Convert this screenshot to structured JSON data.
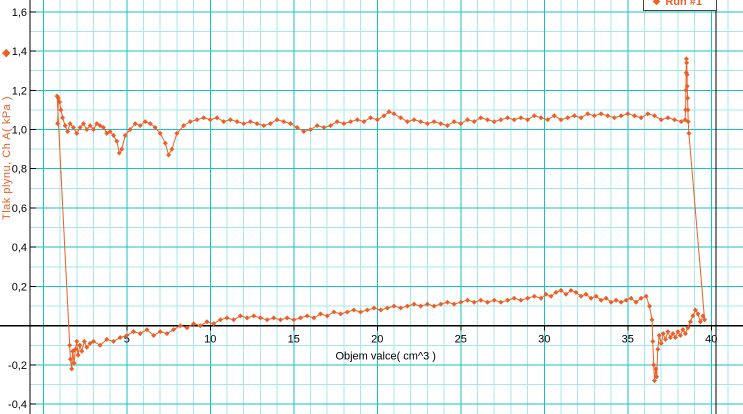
{
  "chart_data": {
    "type": "scatter",
    "title": "",
    "xlabel": "Objem valce( cm^3 )",
    "ylabel": "Tlak plynu, Ch A( kPa )",
    "legend": {
      "label": "Run #1",
      "marker_glyph": "◆",
      "position": "top-right"
    },
    "grid": true,
    "xlim": [
      -0.8,
      41.9
    ],
    "ylim": [
      -0.45,
      1.66
    ],
    "x_minor_step": 1,
    "y_minor_step": 0.1,
    "x_major_ticks": [
      {
        "v": 5,
        "label": "5"
      },
      {
        "v": 10,
        "label": "10"
      },
      {
        "v": 15,
        "label": "15"
      },
      {
        "v": 20,
        "label": "20"
      },
      {
        "v": 25,
        "label": "25"
      },
      {
        "v": 30,
        "label": "30"
      },
      {
        "v": 35,
        "label": "35"
      },
      {
        "v": 40,
        "label": "40"
      }
    ],
    "y_major_ticks": [
      {
        "v": 1.6,
        "label": "1,6"
      },
      {
        "v": 1.4,
        "label": "1,4"
      },
      {
        "v": 1.2,
        "label": "1,2"
      },
      {
        "v": 1.0,
        "label": "1,0"
      },
      {
        "v": 0.8,
        "label": "0,8"
      },
      {
        "v": 0.6,
        "label": "0,6"
      },
      {
        "v": 0.4,
        "label": "0,4"
      },
      {
        "v": 0.2,
        "label": "0,2"
      },
      {
        "v": -0.2,
        "label": "-0,2"
      },
      {
        "v": -0.4,
        "label": "-0,4"
      }
    ],
    "colors": {
      "series": "#ec5f28",
      "grid_major": "#17c3c3",
      "grid_minor": "#a5e8e8",
      "axis": "#000000",
      "background": "#ffffff"
    },
    "series": [
      {
        "name": "Run #1",
        "marker": "diamond",
        "points": [
          [
            0.82,
            1.17
          ],
          [
            1.58,
            -0.1
          ],
          [
            1.62,
            -0.17
          ],
          [
            1.7,
            -0.22
          ],
          [
            1.76,
            -0.13
          ],
          [
            1.84,
            -0.19
          ],
          [
            1.92,
            -0.12
          ],
          [
            2.0,
            -0.08
          ],
          [
            2.08,
            -0.15
          ],
          [
            2.18,
            -0.1
          ],
          [
            2.3,
            -0.13
          ],
          [
            2.45,
            -0.08
          ],
          [
            2.6,
            -0.11
          ],
          [
            2.8,
            -0.09
          ],
          [
            3.0,
            -0.08
          ],
          [
            3.4,
            -0.1
          ],
          [
            3.8,
            -0.07
          ],
          [
            4.2,
            -0.08
          ],
          [
            4.6,
            -0.06
          ],
          [
            5.0,
            -0.05
          ],
          [
            5.4,
            -0.03
          ],
          [
            5.8,
            -0.04
          ],
          [
            6.2,
            -0.02
          ],
          [
            6.6,
            -0.05
          ],
          [
            7.0,
            -0.03
          ],
          [
            7.4,
            -0.04
          ],
          [
            7.8,
            -0.02
          ],
          [
            8.2,
            0.0
          ],
          [
            8.6,
            -0.01
          ],
          [
            9.0,
            0.01
          ],
          [
            9.4,
            0.0
          ],
          [
            9.8,
            0.02
          ],
          [
            10.2,
            0.01
          ],
          [
            10.6,
            0.03
          ],
          [
            11.0,
            0.04
          ],
          [
            11.4,
            0.03
          ],
          [
            11.8,
            0.05
          ],
          [
            12.2,
            0.04
          ],
          [
            12.6,
            0.05
          ],
          [
            13.0,
            0.04
          ],
          [
            13.4,
            0.03
          ],
          [
            13.8,
            0.04
          ],
          [
            14.2,
            0.03
          ],
          [
            14.6,
            0.04
          ],
          [
            15.0,
            0.03
          ],
          [
            15.4,
            0.04
          ],
          [
            15.8,
            0.05
          ],
          [
            16.2,
            0.04
          ],
          [
            16.6,
            0.06
          ],
          [
            17.0,
            0.05
          ],
          [
            17.4,
            0.07
          ],
          [
            17.8,
            0.06
          ],
          [
            18.2,
            0.07
          ],
          [
            18.6,
            0.08
          ],
          [
            19.0,
            0.07
          ],
          [
            19.4,
            0.08
          ],
          [
            19.8,
            0.09
          ],
          [
            20.2,
            0.08
          ],
          [
            20.6,
            0.09
          ],
          [
            21.0,
            0.1
          ],
          [
            21.4,
            0.09
          ],
          [
            21.8,
            0.1
          ],
          [
            22.2,
            0.11
          ],
          [
            22.6,
            0.1
          ],
          [
            23.0,
            0.11
          ],
          [
            23.4,
            0.1
          ],
          [
            23.8,
            0.11
          ],
          [
            24.2,
            0.12
          ],
          [
            24.6,
            0.11
          ],
          [
            25.0,
            0.12
          ],
          [
            25.4,
            0.13
          ],
          [
            25.8,
            0.12
          ],
          [
            26.2,
            0.13
          ],
          [
            26.6,
            0.12
          ],
          [
            27.0,
            0.13
          ],
          [
            27.4,
            0.12
          ],
          [
            27.8,
            0.13
          ],
          [
            28.2,
            0.14
          ],
          [
            28.6,
            0.13
          ],
          [
            29.0,
            0.14
          ],
          [
            29.4,
            0.15
          ],
          [
            29.8,
            0.14
          ],
          [
            30.1,
            0.16
          ],
          [
            30.4,
            0.15
          ],
          [
            30.7,
            0.17
          ],
          [
            31.0,
            0.18
          ],
          [
            31.3,
            0.16
          ],
          [
            31.6,
            0.18
          ],
          [
            31.9,
            0.17
          ],
          [
            32.2,
            0.15
          ],
          [
            32.5,
            0.16
          ],
          [
            32.8,
            0.14
          ],
          [
            33.1,
            0.15
          ],
          [
            33.4,
            0.13
          ],
          [
            33.7,
            0.14
          ],
          [
            34.0,
            0.12
          ],
          [
            34.3,
            0.13
          ],
          [
            34.6,
            0.12
          ],
          [
            34.9,
            0.13
          ],
          [
            35.2,
            0.14
          ],
          [
            35.5,
            0.12
          ],
          [
            35.8,
            0.14
          ],
          [
            36.1,
            0.15
          ],
          [
            36.3,
            0.1
          ],
          [
            36.45,
            0.03
          ],
          [
            36.5,
            -0.08
          ],
          [
            36.55,
            -0.2
          ],
          [
            36.6,
            -0.28
          ],
          [
            36.68,
            -0.22
          ],
          [
            36.73,
            -0.26
          ],
          [
            36.8,
            -0.12
          ],
          [
            36.88,
            -0.05
          ],
          [
            37.0,
            -0.09
          ],
          [
            37.12,
            -0.04
          ],
          [
            37.26,
            -0.07
          ],
          [
            37.4,
            -0.03
          ],
          [
            37.55,
            -0.06
          ],
          [
            37.7,
            -0.04
          ],
          [
            37.85,
            -0.06
          ],
          [
            38.0,
            -0.03
          ],
          [
            38.15,
            -0.05
          ],
          [
            38.3,
            -0.02
          ],
          [
            38.45,
            -0.04
          ],
          [
            38.6,
            -0.01
          ],
          [
            38.75,
            0.02
          ],
          [
            38.9,
            0.05
          ],
          [
            39.05,
            0.08
          ],
          [
            39.2,
            0.06
          ],
          [
            39.35,
            0.02
          ],
          [
            39.5,
            0.05
          ],
          [
            39.6,
            0.03
          ],
          [
            38.66,
            0.98
          ],
          [
            38.62,
            1.04
          ],
          [
            38.6,
            1.1
          ],
          [
            38.58,
            1.16
          ],
          [
            38.56,
            1.22
          ],
          [
            38.55,
            1.28
          ],
          [
            38.53,
            1.34
          ],
          [
            38.51,
            1.36
          ],
          [
            38.5,
            1.29
          ],
          [
            38.48,
            1.2
          ],
          [
            38.46,
            1.1
          ],
          [
            38.43,
            1.05
          ],
          [
            38.2,
            1.04
          ],
          [
            37.8,
            1.05
          ],
          [
            37.4,
            1.06
          ],
          [
            37.0,
            1.05
          ],
          [
            36.6,
            1.07
          ],
          [
            36.2,
            1.08
          ],
          [
            35.8,
            1.06
          ],
          [
            35.4,
            1.07
          ],
          [
            35.0,
            1.08
          ],
          [
            34.6,
            1.07
          ],
          [
            34.2,
            1.06
          ],
          [
            33.8,
            1.07
          ],
          [
            33.4,
            1.08
          ],
          [
            33.0,
            1.07
          ],
          [
            32.6,
            1.08
          ],
          [
            32.2,
            1.06
          ],
          [
            31.8,
            1.07
          ],
          [
            31.4,
            1.06
          ],
          [
            31.0,
            1.05
          ],
          [
            30.6,
            1.07
          ],
          [
            30.2,
            1.05
          ],
          [
            29.8,
            1.06
          ],
          [
            29.4,
            1.07
          ],
          [
            29.0,
            1.05
          ],
          [
            28.6,
            1.06
          ],
          [
            28.2,
            1.05
          ],
          [
            27.8,
            1.06
          ],
          [
            27.4,
            1.05
          ],
          [
            27.0,
            1.04
          ],
          [
            26.6,
            1.05
          ],
          [
            26.2,
            1.06
          ],
          [
            25.8,
            1.04
          ],
          [
            25.4,
            1.05
          ],
          [
            25.0,
            1.03
          ],
          [
            24.6,
            1.04
          ],
          [
            24.2,
            1.02
          ],
          [
            23.8,
            1.03
          ],
          [
            23.4,
            1.04
          ],
          [
            23.0,
            1.03
          ],
          [
            22.6,
            1.04
          ],
          [
            22.2,
            1.05
          ],
          [
            21.8,
            1.04
          ],
          [
            21.4,
            1.06
          ],
          [
            21.0,
            1.08
          ],
          [
            20.7,
            1.09
          ],
          [
            20.4,
            1.07
          ],
          [
            20.0,
            1.05
          ],
          [
            19.6,
            1.06
          ],
          [
            19.2,
            1.04
          ],
          [
            18.8,
            1.05
          ],
          [
            18.4,
            1.04
          ],
          [
            18.0,
            1.03
          ],
          [
            17.6,
            1.04
          ],
          [
            17.2,
            1.02
          ],
          [
            16.8,
            1.01
          ],
          [
            16.4,
            1.02
          ],
          [
            16.0,
            1.0
          ],
          [
            15.6,
            0.99
          ],
          [
            15.2,
            1.01
          ],
          [
            14.8,
            1.03
          ],
          [
            14.4,
            1.04
          ],
          [
            14.0,
            1.05
          ],
          [
            13.6,
            1.03
          ],
          [
            13.2,
            1.02
          ],
          [
            12.8,
            1.03
          ],
          [
            12.4,
            1.04
          ],
          [
            12.0,
            1.03
          ],
          [
            11.6,
            1.04
          ],
          [
            11.2,
            1.05
          ],
          [
            10.8,
            1.04
          ],
          [
            10.4,
            1.06
          ],
          [
            10.0,
            1.05
          ],
          [
            9.6,
            1.06
          ],
          [
            9.2,
            1.05
          ],
          [
            8.8,
            1.04
          ],
          [
            8.4,
            1.02
          ],
          [
            8.0,
            0.98
          ],
          [
            7.7,
            0.9
          ],
          [
            7.5,
            0.87
          ],
          [
            7.3,
            0.93
          ],
          [
            7.0,
            0.98
          ],
          [
            6.7,
            1.01
          ],
          [
            6.4,
            1.03
          ],
          [
            6.1,
            1.04
          ],
          [
            5.8,
            1.02
          ],
          [
            5.5,
            1.03
          ],
          [
            5.2,
            1.0
          ],
          [
            4.9,
            0.97
          ],
          [
            4.7,
            0.9
          ],
          [
            4.55,
            0.88
          ],
          [
            4.4,
            0.94
          ],
          [
            4.2,
            0.97
          ],
          [
            4.0,
            0.99
          ],
          [
            3.8,
            0.98
          ],
          [
            3.6,
            1.01
          ],
          [
            3.4,
            1.02
          ],
          [
            3.2,
            1.03
          ],
          [
            3.0,
            1.0
          ],
          [
            2.8,
            1.02
          ],
          [
            2.6,
            1.0
          ],
          [
            2.4,
            1.03
          ],
          [
            2.2,
            1.01
          ],
          [
            2.0,
            0.98
          ],
          [
            1.8,
            1.01
          ],
          [
            1.6,
            1.03
          ],
          [
            1.45,
            0.99
          ],
          [
            1.3,
            1.02
          ],
          [
            1.15,
            1.06
          ],
          [
            1.05,
            1.1
          ],
          [
            0.97,
            1.14
          ],
          [
            0.9,
            1.16
          ],
          [
            0.85,
            1.03
          ]
        ]
      }
    ]
  }
}
